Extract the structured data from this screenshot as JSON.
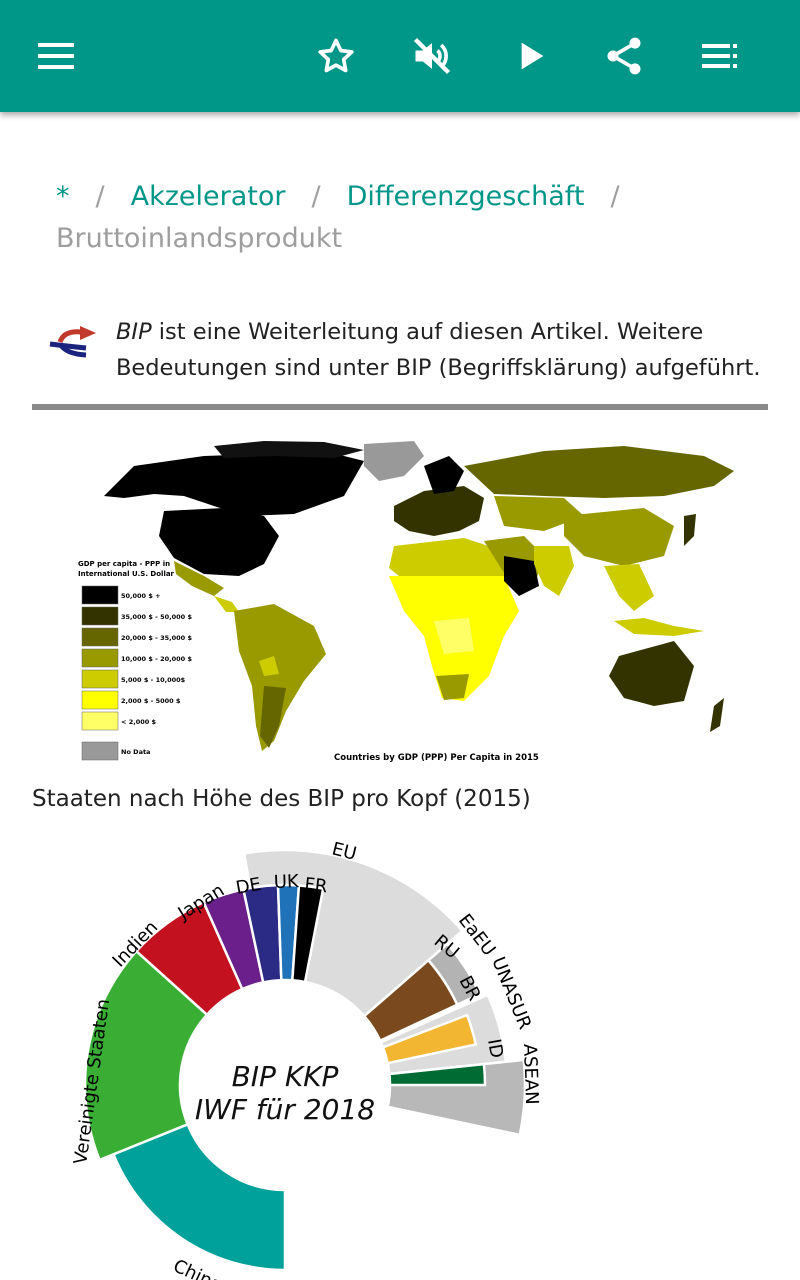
{
  "toolbar": {
    "icons": [
      "menu-icon",
      "star-icon",
      "volume-off-icon",
      "play-icon",
      "share-icon",
      "toc-icon"
    ],
    "color": "#009688"
  },
  "breadcrumb": {
    "items": [
      "*",
      "Akzelerator",
      "Differenzgeschäft"
    ],
    "separator": "/",
    "current": "Bruttoinlandsprodukt"
  },
  "redirect_note": {
    "term": "BIP",
    "text": " ist eine Weiterleitung auf diesen Artikel. Weitere Bedeutungen sind unter BIP (Begriffsklärung) aufgeführt."
  },
  "map": {
    "legend_title_1": "GDP per capita - PPP in",
    "legend_title_2": "International U.S. Dollar",
    "legend": [
      {
        "label": "50,000 $ +",
        "color": "#000000"
      },
      {
        "label": "35,000 $ - 50,000 $",
        "color": "#333300"
      },
      {
        "label": "20,000 $ - 35,000 $",
        "color": "#666600"
      },
      {
        "label": "10,000 $ - 20,000 $",
        "color": "#999900"
      },
      {
        "label": "5,000 $ - 10,000$",
        "color": "#cccc00"
      },
      {
        "label": "2,000 $ - 5000 $",
        "color": "#ffff00"
      },
      {
        "label": "< 2,000 $",
        "color": "#ffff66"
      },
      {
        "label": "No Data",
        "color": "#999999"
      }
    ],
    "footer": "Countries by GDP (PPP) Per Capita in 2015"
  },
  "caption": "Staaten nach Höhe des BIP pro Kopf (2015)",
  "donut": {
    "center_line1": "BIP KKP",
    "center_line2": "IWF für 2018",
    "labels": {
      "china": "China",
      "usa": "Vereinigte Staaten",
      "indien": "Indien",
      "japan": "Japan",
      "de": "DE",
      "uk": "UK",
      "fr": "FR",
      "eu": "EU",
      "eaeu": "EaEU",
      "ru": "RU",
      "unasur": "UNASUR",
      "br": "BR",
      "asean": "ASEAN",
      "id": "ID"
    }
  }
}
